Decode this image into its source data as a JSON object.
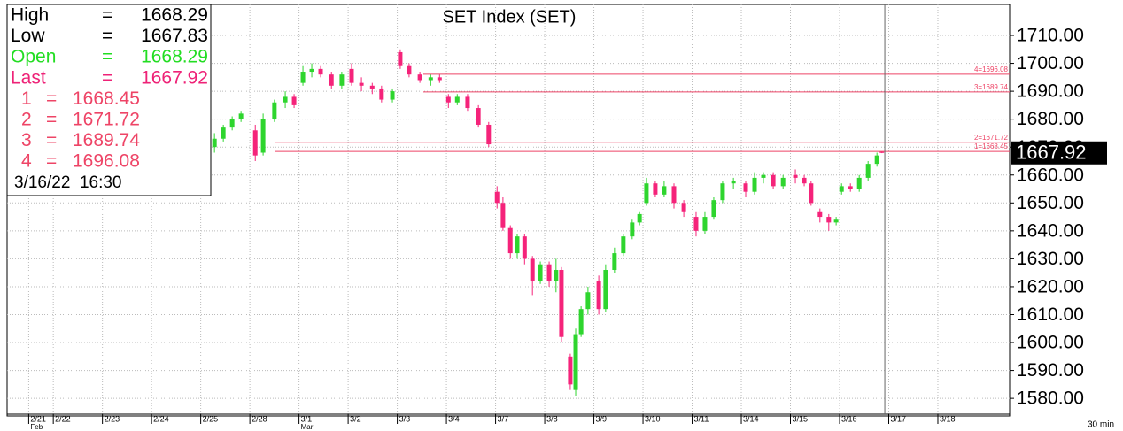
{
  "chart_data": {
    "type": "candlestick",
    "title": "SET Index (SET)",
    "interval": "30 min",
    "up_color": "#2ed52e",
    "down_color": "#f5237a",
    "level_color": "#ee4466",
    "grid": true,
    "xlim": [
      -0.94,
      19.46
    ],
    "ylim": [
      1573.7,
      1721.1
    ],
    "yticks": [
      {
        "value": 1580,
        "label": "1580.00"
      },
      {
        "value": 1590,
        "label": "1590.00"
      },
      {
        "value": 1600,
        "label": "1600.00"
      },
      {
        "value": 1610,
        "label": "1610.00"
      },
      {
        "value": 1620,
        "label": "1620.00"
      },
      {
        "value": 1630,
        "label": "1630.00"
      },
      {
        "value": 1640,
        "label": "1640.00"
      },
      {
        "value": 1650,
        "label": "1650.00"
      },
      {
        "value": 1660,
        "label": "1660.00"
      },
      {
        "value": 1670,
        "label": "1670.00"
      },
      {
        "value": 1680,
        "label": "1680.00"
      },
      {
        "value": 1690,
        "label": "1690.00"
      },
      {
        "value": 1700,
        "label": "1700.00"
      },
      {
        "value": 1710,
        "label": "1710.00"
      }
    ],
    "xticks": [
      {
        "value": -0.5,
        "label": "2/21"
      },
      {
        "value": 0,
        "label": "2/22"
      },
      {
        "value": 1,
        "label": "2/23"
      },
      {
        "value": 2,
        "label": "2/24"
      },
      {
        "value": 3,
        "label": "2/25"
      },
      {
        "value": 4,
        "label": "2/28"
      },
      {
        "value": 5,
        "label": "3/1"
      },
      {
        "value": 6,
        "label": "3/2"
      },
      {
        "value": 7,
        "label": "3/3"
      },
      {
        "value": 8,
        "label": "3/4"
      },
      {
        "value": 9,
        "label": "3/7"
      },
      {
        "value": 10,
        "label": "3/8"
      },
      {
        "value": 11,
        "label": "3/9"
      },
      {
        "value": 12,
        "label": "3/10"
      },
      {
        "value": 13,
        "label": "3/11"
      },
      {
        "value": 14,
        "label": "3/14"
      },
      {
        "value": 15,
        "label": "3/15"
      },
      {
        "value": 16,
        "label": "3/16"
      },
      {
        "value": 17,
        "label": "3/17"
      },
      {
        "value": 18,
        "label": "3/18"
      }
    ],
    "months": [
      {
        "value": -0.5,
        "label": "Feb"
      },
      {
        "value": 5,
        "label": "Mar"
      }
    ],
    "cursor_x": 16.92,
    "info": {
      "equals": "=",
      "rows": [
        {
          "label": "High",
          "value": 1668.29,
          "color": "#000000"
        },
        {
          "label": "Low",
          "value": 1667.83,
          "color": "#000000"
        },
        {
          "label": "Open",
          "value": 1668.29,
          "color": "#22dd22"
        },
        {
          "label": "Last",
          "value": 1667.92,
          "color": "#ee2277"
        }
      ],
      "date": "3/16/22  16:30"
    },
    "levels": [
      {
        "name": "1",
        "value": 1668.45,
        "value_label": "1=1668.45"
      },
      {
        "name": "2",
        "value": 1671.72,
        "value_label": "2=1671.72"
      },
      {
        "name": "3",
        "value": 1689.74,
        "value_label": "3=1689.74"
      },
      {
        "name": "4",
        "value": 1696.08,
        "value_label": "4=1696.08"
      }
    ],
    "candles": [
      {
        "x": 3.28,
        "open": 1670,
        "high": 1675,
        "low": 1668,
        "close": 1673
      },
      {
        "x": 3.46,
        "open": 1673,
        "high": 1678,
        "low": 1672,
        "close": 1677
      },
      {
        "x": 3.64,
        "open": 1677,
        "high": 1681,
        "low": 1676,
        "close": 1680
      },
      {
        "x": 3.82,
        "open": 1680,
        "high": 1683,
        "low": 1679,
        "close": 1682
      },
      {
        "x": 4.11,
        "open": 1676,
        "high": 1678,
        "low": 1665,
        "close": 1667
      },
      {
        "x": 4.27,
        "open": 1668,
        "high": 1682,
        "low": 1667,
        "close": 1680
      },
      {
        "x": 4.5,
        "open": 1680,
        "high": 1687,
        "low": 1679,
        "close": 1686
      },
      {
        "x": 4.72,
        "open": 1686,
        "high": 1690,
        "low": 1684,
        "close": 1688
      },
      {
        "x": 4.9,
        "open": 1688,
        "high": 1689,
        "low": 1684,
        "close": 1685
      },
      {
        "x": 5.08,
        "open": 1693,
        "high": 1699,
        "low": 1692,
        "close": 1697
      },
      {
        "x": 5.26,
        "open": 1697,
        "high": 1700,
        "low": 1695,
        "close": 1698
      },
      {
        "x": 5.44,
        "open": 1698,
        "high": 1699,
        "low": 1695,
        "close": 1696
      },
      {
        "x": 5.66,
        "open": 1696,
        "high": 1697,
        "low": 1691,
        "close": 1692
      },
      {
        "x": 5.87,
        "open": 1692,
        "high": 1697,
        "low": 1691,
        "close": 1696
      },
      {
        "x": 6.07,
        "open": 1698,
        "high": 1700,
        "low": 1692,
        "close": 1693
      },
      {
        "x": 6.27,
        "open": 1693,
        "high": 1695,
        "low": 1690,
        "close": 1692
      },
      {
        "x": 6.49,
        "open": 1692,
        "high": 1693,
        "low": 1689,
        "close": 1691
      },
      {
        "x": 6.68,
        "open": 1691,
        "high": 1692,
        "low": 1686,
        "close": 1687
      },
      {
        "x": 6.9,
        "open": 1687,
        "high": 1691,
        "low": 1686,
        "close": 1690
      },
      {
        "x": 7.06,
        "open": 1704,
        "high": 1705,
        "low": 1698,
        "close": 1699
      },
      {
        "x": 7.24,
        "open": 1699,
        "high": 1700,
        "low": 1695,
        "close": 1696
      },
      {
        "x": 7.46,
        "open": 1696,
        "high": 1697,
        "low": 1693,
        "close": 1694
      },
      {
        "x": 7.68,
        "open": 1694,
        "high": 1696,
        "low": 1692,
        "close": 1695
      },
      {
        "x": 7.86,
        "open": 1695,
        "high": 1696,
        "low": 1693,
        "close": 1694
      },
      {
        "x": 8.04,
        "open": 1688,
        "high": 1689,
        "low": 1684,
        "close": 1686
      },
      {
        "x": 8.22,
        "open": 1686,
        "high": 1689,
        "low": 1685,
        "close": 1688
      },
      {
        "x": 8.43,
        "open": 1688,
        "high": 1689,
        "low": 1683,
        "close": 1684
      },
      {
        "x": 8.65,
        "open": 1684,
        "high": 1685,
        "low": 1677,
        "close": 1678
      },
      {
        "x": 8.86,
        "open": 1678,
        "high": 1679,
        "low": 1670,
        "close": 1671
      },
      {
        "x": 9.03,
        "open": 1654,
        "high": 1656,
        "low": 1648,
        "close": 1650
      },
      {
        "x": 9.15,
        "open": 1650,
        "high": 1652,
        "low": 1640,
        "close": 1641
      },
      {
        "x": 9.3,
        "open": 1641,
        "high": 1642,
        "low": 1630,
        "close": 1632
      },
      {
        "x": 9.44,
        "open": 1632,
        "high": 1639,
        "low": 1630,
        "close": 1638
      },
      {
        "x": 9.59,
        "open": 1638,
        "high": 1639,
        "low": 1628,
        "close": 1630
      },
      {
        "x": 9.75,
        "open": 1630,
        "high": 1631,
        "low": 1617,
        "close": 1622
      },
      {
        "x": 9.91,
        "open": 1622,
        "high": 1629,
        "low": 1621,
        "close": 1628
      },
      {
        "x": 10.09,
        "open": 1628,
        "high": 1629,
        "low": 1620,
        "close": 1622
      },
      {
        "x": 10.23,
        "open": 1622,
        "high": 1630,
        "low": 1618,
        "close": 1626
      },
      {
        "x": 10.34,
        "open": 1626,
        "high": 1627,
        "low": 1600,
        "close": 1602
      },
      {
        "x": 10.52,
        "open": 1595,
        "high": 1596,
        "low": 1583,
        "close": 1585
      },
      {
        "x": 10.63,
        "open": 1583,
        "high": 1605,
        "low": 1581,
        "close": 1603
      },
      {
        "x": 10.74,
        "open": 1603,
        "high": 1613,
        "low": 1602,
        "close": 1612
      },
      {
        "x": 10.88,
        "open": 1612,
        "high": 1620,
        "low": 1610,
        "close": 1618
      },
      {
        "x": 11.1,
        "open": 1622,
        "high": 1624,
        "low": 1610,
        "close": 1612
      },
      {
        "x": 11.24,
        "open": 1612,
        "high": 1628,
        "low": 1611,
        "close": 1626
      },
      {
        "x": 11.42,
        "open": 1626,
        "high": 1634,
        "low": 1625,
        "close": 1632
      },
      {
        "x": 11.6,
        "open": 1632,
        "high": 1639,
        "low": 1631,
        "close": 1638
      },
      {
        "x": 11.78,
        "open": 1638,
        "high": 1644,
        "low": 1637,
        "close": 1643
      },
      {
        "x": 11.93,
        "open": 1643,
        "high": 1647,
        "low": 1642,
        "close": 1646
      },
      {
        "x": 12.07,
        "open": 1650,
        "high": 1659,
        "low": 1649,
        "close": 1657
      },
      {
        "x": 12.25,
        "open": 1657,
        "high": 1658,
        "low": 1652,
        "close": 1653
      },
      {
        "x": 12.43,
        "open": 1653,
        "high": 1658,
        "low": 1652,
        "close": 1656
      },
      {
        "x": 12.63,
        "open": 1656,
        "high": 1657,
        "low": 1648,
        "close": 1650
      },
      {
        "x": 12.83,
        "open": 1650,
        "high": 1651,
        "low": 1645,
        "close": 1647
      },
      {
        "x": 13.08,
        "open": 1645,
        "high": 1647,
        "low": 1638,
        "close": 1640
      },
      {
        "x": 13.26,
        "open": 1640,
        "high": 1647,
        "low": 1639,
        "close": 1645
      },
      {
        "x": 13.44,
        "open": 1645,
        "high": 1652,
        "low": 1644,
        "close": 1651
      },
      {
        "x": 13.62,
        "open": 1651,
        "high": 1658,
        "low": 1650,
        "close": 1657
      },
      {
        "x": 13.84,
        "open": 1657,
        "high": 1659,
        "low": 1655,
        "close": 1658
      },
      {
        "x": 14.09,
        "open": 1657,
        "high": 1658,
        "low": 1652,
        "close": 1654
      },
      {
        "x": 14.27,
        "open": 1654,
        "high": 1661,
        "low": 1653,
        "close": 1659
      },
      {
        "x": 14.45,
        "open": 1659,
        "high": 1661,
        "low": 1657,
        "close": 1660
      },
      {
        "x": 14.65,
        "open": 1660,
        "high": 1661,
        "low": 1655,
        "close": 1656
      },
      {
        "x": 14.85,
        "open": 1656,
        "high": 1660,
        "low": 1655,
        "close": 1659
      },
      {
        "x": 15.1,
        "open": 1660,
        "high": 1662,
        "low": 1657,
        "close": 1659
      },
      {
        "x": 15.28,
        "open": 1659,
        "high": 1660,
        "low": 1656,
        "close": 1657
      },
      {
        "x": 15.42,
        "open": 1657,
        "high": 1658,
        "low": 1649,
        "close": 1650
      },
      {
        "x": 15.6,
        "open": 1647,
        "high": 1648,
        "low": 1643,
        "close": 1645
      },
      {
        "x": 15.78,
        "open": 1645,
        "high": 1646,
        "low": 1640,
        "close": 1643
      },
      {
        "x": 15.93,
        "open": 1643,
        "high": 1645,
        "low": 1642,
        "close": 1644
      },
      {
        "x": 16.04,
        "open": 1654,
        "high": 1657,
        "low": 1653,
        "close": 1656
      },
      {
        "x": 16.22,
        "open": 1656,
        "high": 1657,
        "low": 1654,
        "close": 1655
      },
      {
        "x": 16.4,
        "open": 1655,
        "high": 1660,
        "low": 1654,
        "close": 1659
      },
      {
        "x": 16.58,
        "open": 1659,
        "high": 1665,
        "low": 1658,
        "close": 1664
      },
      {
        "x": 16.76,
        "open": 1664,
        "high": 1668,
        "low": 1663,
        "close": 1667
      },
      {
        "x": 16.86,
        "open": 1668.29,
        "high": 1668.29,
        "low": 1667.83,
        "close": 1667.92
      }
    ]
  }
}
